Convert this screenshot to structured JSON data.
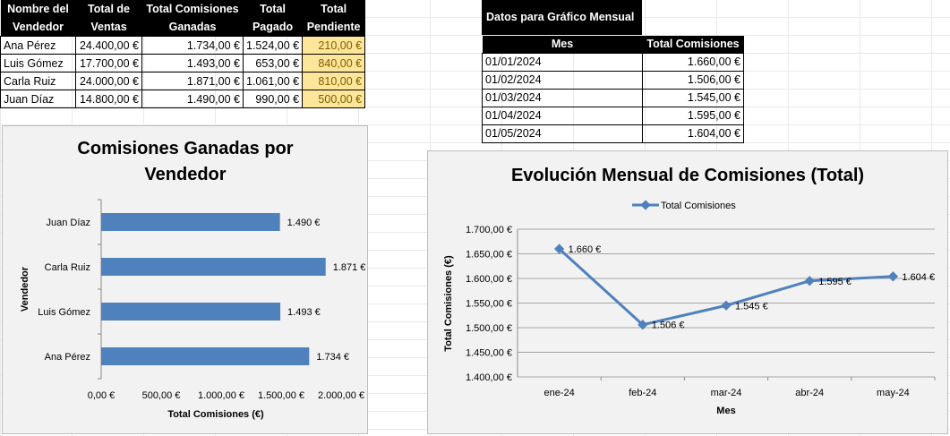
{
  "sales_table": {
    "headers": [
      [
        "Nombre del",
        "Vendedor"
      ],
      [
        "Total de",
        "Ventas"
      ],
      [
        "Total Comisiones",
        "Ganadas"
      ],
      [
        "Total",
        "Pagado"
      ],
      [
        "Total",
        "Pendiente"
      ]
    ],
    "rows": [
      [
        "Ana Pérez",
        "24.400,00 €",
        "1.734,00 €",
        "1.524,00 €",
        "210,00 €"
      ],
      [
        "Luis Gómez",
        "17.700,00 €",
        "1.493,00 €",
        "653,00 €",
        "840,00 €"
      ],
      [
        "Carla Ruiz",
        "24.000,00 €",
        "1.871,00 €",
        "1.061,00 €",
        "810,00 €"
      ],
      [
        "Juan Díaz",
        "14.800,00 €",
        "1.490,00 €",
        "990,00 €",
        "500,00 €"
      ]
    ]
  },
  "monthly_table": {
    "title": "Datos para Gráfico Mensual",
    "headers": [
      "Mes",
      "Total Comisiones"
    ],
    "rows": [
      [
        "01/01/2024",
        "1.660,00 €"
      ],
      [
        "01/02/2024",
        "1.506,00 €"
      ],
      [
        "01/03/2024",
        "1.545,00 €"
      ],
      [
        "01/04/2024",
        "1.595,00 €"
      ],
      [
        "01/05/2024",
        "1.604,00 €"
      ]
    ]
  },
  "colors": {
    "series": "#4f81bd",
    "pending_fill": "#fde59a",
    "chart_bg": "#f2f2f2"
  },
  "chart_data": [
    {
      "type": "bar",
      "orientation": "horizontal",
      "title": "Comisiones Ganadas por Vendedor",
      "xlabel": "Total Comisiones (€)",
      "ylabel": "Vendedor",
      "categories": [
        "Juan Díaz",
        "Carla Ruiz",
        "Luis Gómez",
        "Ana Pérez"
      ],
      "values": [
        1490,
        1871,
        1493,
        1734
      ],
      "data_labels": [
        "1.490 €",
        "1.871 €",
        "1.493 €",
        "1.734 €"
      ],
      "xlim": [
        0,
        2000
      ],
      "xticks": [
        0,
        500,
        1000,
        1500,
        2000
      ],
      "xtick_labels": [
        "0,00 €",
        "500,00 €",
        "1.000,00 €",
        "1.500,00 €",
        "2.000,00 €"
      ],
      "grid": false
    },
    {
      "type": "line",
      "title": "Evolución Mensual de Comisiones (Total)",
      "xlabel": "Mes",
      "ylabel": "Total Comisiones (€)",
      "categories": [
        "ene-24",
        "feb-24",
        "mar-24",
        "abr-24",
        "may-24"
      ],
      "series": [
        {
          "name": "Total Comisiones",
          "values": [
            1660,
            1506,
            1545,
            1595,
            1604
          ],
          "data_labels": [
            "1.660 €",
            "1.506 €",
            "1.545 €",
            "1.595 €",
            "1.604 €"
          ]
        }
      ],
      "ylim": [
        1400,
        1700
      ],
      "yticks": [
        1400,
        1450,
        1500,
        1550,
        1600,
        1650,
        1700
      ],
      "ytick_labels": [
        "1.400,00 €",
        "1.450,00 €",
        "1.500,00 €",
        "1.550,00 €",
        "1.600,00 €",
        "1.650,00 €",
        "1.700,00 €"
      ],
      "grid": true,
      "legend": "top"
    }
  ]
}
